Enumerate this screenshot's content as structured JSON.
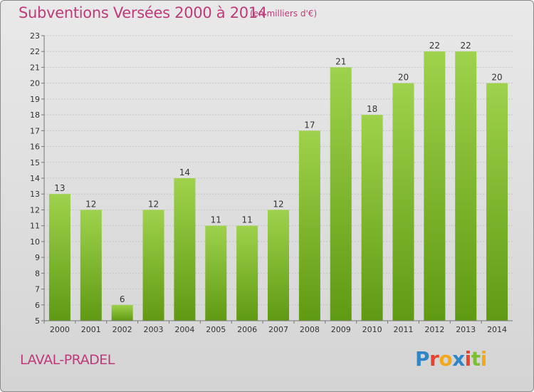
{
  "header": {
    "title": "Subventions Versées 2000 à 2014",
    "subtitle": "(en milliers d'€)"
  },
  "footer": {
    "commune": "LAVAL-PRADEL",
    "logo_letters": [
      "P",
      "r",
      "o",
      "x",
      "i",
      "t",
      "i"
    ]
  },
  "colors": {
    "accent": "#c03a7a",
    "bar_top": "#9fd24c",
    "bar_bottom": "#5f9a12"
  },
  "chart_data": {
    "type": "bar",
    "title": "Subventions Versées 2000 à 2014",
    "subtitle": "(en milliers d'€)",
    "xlabel": "",
    "ylabel": "",
    "categories": [
      "2000",
      "2001",
      "2002",
      "2003",
      "2004",
      "2005",
      "2006",
      "2007",
      "2008",
      "2009",
      "2010",
      "2011",
      "2012",
      "2013",
      "2014"
    ],
    "values": [
      13,
      12,
      6,
      12,
      14,
      11,
      11,
      12,
      17,
      21,
      18,
      20,
      22,
      22,
      20
    ],
    "ylim": [
      5,
      23
    ],
    "yticks": [
      5,
      6,
      7,
      8,
      9,
      10,
      11,
      12,
      13,
      14,
      15,
      16,
      17,
      18,
      19,
      20,
      21,
      22,
      23
    ],
    "grid": true,
    "legend": "none"
  }
}
